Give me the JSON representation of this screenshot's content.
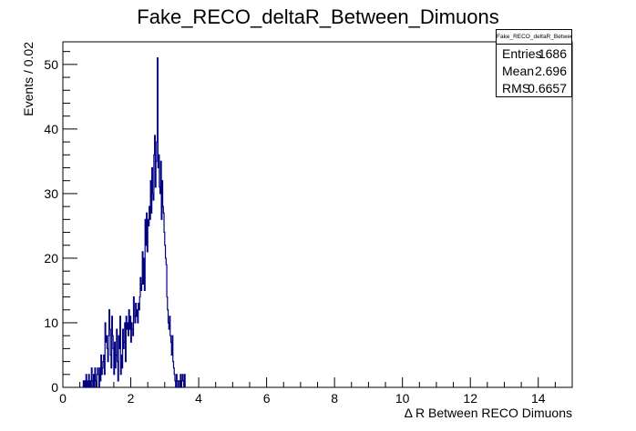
{
  "chart_data": {
    "type": "histogram",
    "title": "Fake_RECO_deltaR_Between_Dimuons",
    "xlabel": "Δ R Between RECO Dimuons",
    "ylabel": "Events / 0.02",
    "xlim": [
      0,
      15
    ],
    "ylim": [
      0,
      53.5
    ],
    "bin_width": 0.02,
    "x_ticks": [
      0,
      2,
      4,
      6,
      8,
      10,
      12,
      14
    ],
    "y_ticks": [
      0,
      10,
      20,
      30,
      40,
      50
    ],
    "line_color": "#000080",
    "bins_start": 0.6,
    "values": [
      1,
      0,
      1,
      0,
      2,
      0,
      1,
      0,
      2,
      0,
      1,
      0,
      3,
      1,
      0,
      2,
      0,
      3,
      1,
      0,
      2,
      3,
      2,
      0,
      3,
      1,
      5,
      2,
      3,
      4,
      5,
      2,
      10,
      7,
      8,
      6,
      4,
      8,
      12,
      9,
      5,
      3,
      11,
      8,
      6,
      2,
      7,
      3,
      5,
      9,
      4,
      1,
      8,
      6,
      11,
      2,
      5,
      3,
      9,
      6,
      7,
      10,
      4,
      11,
      9,
      10,
      8,
      12,
      9,
      11,
      7,
      10,
      9,
      8,
      14,
      11,
      10,
      13,
      11,
      12,
      10,
      13,
      12,
      14,
      17,
      15,
      16,
      21,
      16,
      20,
      15,
      26,
      22,
      27,
      21,
      26,
      25,
      28,
      26,
      32,
      27,
      34,
      30,
      29,
      36,
      39,
      31,
      35,
      38,
      51,
      34,
      36,
      31,
      30,
      35,
      26,
      32,
      28,
      27,
      24,
      22,
      20,
      19,
      14,
      12,
      10,
      9,
      11,
      8,
      7,
      5,
      8,
      4,
      3,
      2,
      1,
      0,
      2,
      1,
      0,
      1,
      1,
      0,
      2,
      0,
      1,
      2,
      1,
      0,
      2
    ],
    "stats": {
      "title": "Fake_RECO_deltaR_Between_Dimuons",
      "rows": [
        {
          "label": "Entries",
          "value": "1686"
        },
        {
          "label": "Mean",
          "value": "2.696"
        },
        {
          "label": "RMS",
          "value": "0.6657"
        }
      ]
    }
  }
}
